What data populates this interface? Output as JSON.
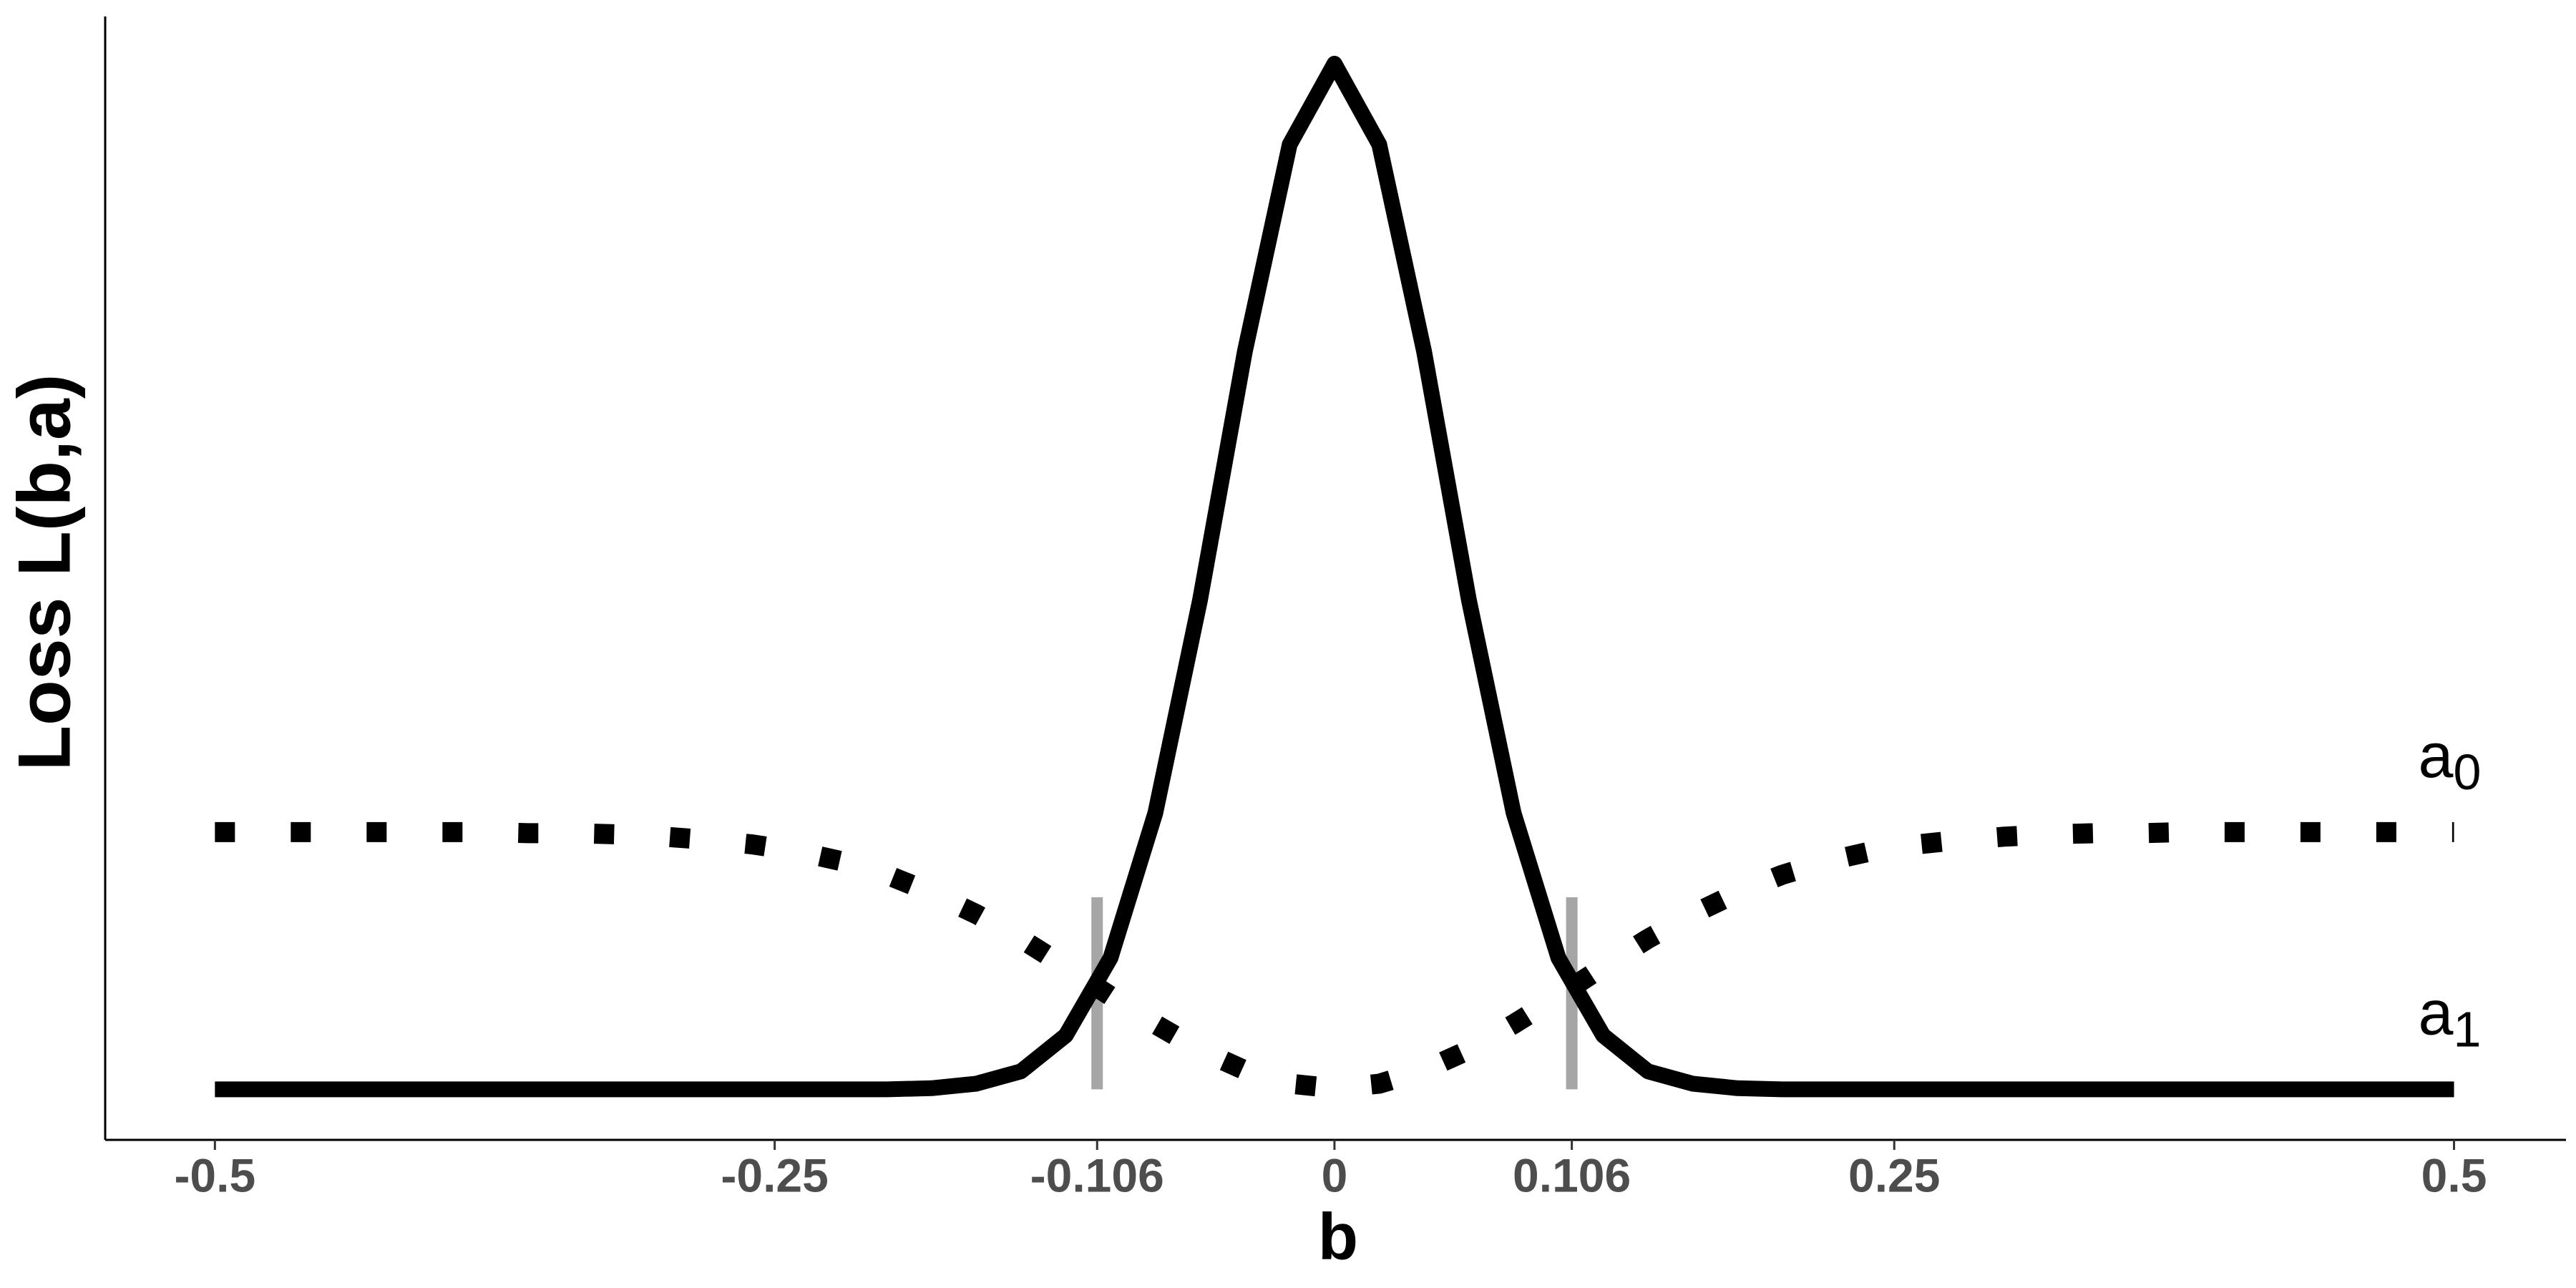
{
  "chart_data": {
    "type": "line",
    "x_label": "b",
    "y_label": "Loss  L(b,a)",
    "x": [
      -0.5,
      -0.48,
      -0.46,
      -0.44,
      -0.42,
      -0.4,
      -0.38,
      -0.36,
      -0.34,
      -0.32,
      -0.3,
      -0.28,
      -0.26,
      -0.24,
      -0.22,
      -0.2,
      -0.18,
      -0.16,
      -0.14,
      -0.12,
      -0.1,
      -0.08,
      -0.06,
      -0.04,
      -0.02,
      0,
      0.02,
      0.04,
      0.06,
      0.08,
      0.1,
      0.12,
      0.14,
      0.16,
      0.18,
      0.2,
      0.22,
      0.24,
      0.26,
      0.28,
      0.3,
      0.32,
      0.34,
      0.36,
      0.38,
      0.4,
      0.42,
      0.44,
      0.46,
      0.48,
      0.5
    ],
    "series": [
      {
        "name": "a0",
        "color": "#000000",
        "style": "dotted",
        "values": [
          0.274,
          0.274,
          0.274,
          0.274,
          0.274,
          0.274,
          0.274,
          0.273,
          0.273,
          0.272,
          0.27,
          0.267,
          0.263,
          0.257,
          0.248,
          0.236,
          0.22,
          0.201,
          0.179,
          0.154,
          0.128,
          0.103,
          0.08,
          0.062,
          0.05,
          0.046,
          0.05,
          0.062,
          0.08,
          0.103,
          0.128,
          0.154,
          0.179,
          0.201,
          0.22,
          0.236,
          0.248,
          0.257,
          0.263,
          0.267,
          0.27,
          0.272,
          0.273,
          0.273,
          0.274,
          0.274,
          0.274,
          0.274,
          0.274,
          0.274,
          0.274
        ]
      },
      {
        "name": "a1",
        "color": "#000000",
        "style": "solid",
        "values": [
          0.045,
          0.045,
          0.045,
          0.045,
          0.045,
          0.045,
          0.045,
          0.045,
          0.045,
          0.045,
          0.045,
          0.045,
          0.045,
          0.045,
          0.045,
          0.045,
          0.046,
          0.05,
          0.061,
          0.093,
          0.162,
          0.291,
          0.481,
          0.702,
          0.886,
          0.958,
          0.886,
          0.702,
          0.481,
          0.291,
          0.162,
          0.093,
          0.061,
          0.05,
          0.046,
          0.045,
          0.045,
          0.045,
          0.045,
          0.045,
          0.045,
          0.045,
          0.045,
          0.045,
          0.045,
          0.045,
          0.045,
          0.045,
          0.045,
          0.045,
          0.045
        ]
      }
    ],
    "vlines": [
      {
        "x": -0.106,
        "ymin": 0.045,
        "ymax": 0.216
      },
      {
        "x": 0.106,
        "ymin": 0.045,
        "ymax": 0.216
      }
    ],
    "vline_color": "#a6a6a6",
    "xlim": [
      -0.549,
      0.55
    ],
    "xticks": [
      -0.5,
      -0.25,
      -0.106,
      0,
      0.106,
      0.25,
      0.5
    ],
    "ylim": [
      0,
      1
    ]
  }
}
